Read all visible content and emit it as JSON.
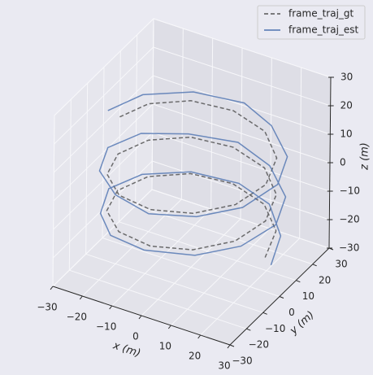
{
  "chart_data": {
    "type": "line3d",
    "xlabel": "x (m)",
    "ylabel": "y (m)",
    "zlabel": "z (m)",
    "xlim": [
      -30,
      30
    ],
    "ylim": [
      -30,
      30
    ],
    "zlim": [
      -30,
      30
    ],
    "xticks": [
      {
        "value": -30,
        "label": "−30"
      },
      {
        "value": -20,
        "label": "−20"
      },
      {
        "value": -10,
        "label": "−10"
      },
      0,
      10,
      20,
      30
    ],
    "yticks": [
      {
        "value": -30,
        "label": "−30"
      },
      {
        "value": -20,
        "label": "−20"
      },
      {
        "value": -10,
        "label": "−10"
      },
      0,
      10,
      20,
      30
    ],
    "zticks": [
      {
        "value": -30,
        "label": "−30"
      },
      {
        "value": -20,
        "label": "−20"
      },
      {
        "value": -10,
        "label": "−10"
      },
      0,
      10,
      20,
      30
    ],
    "grid": true,
    "legend": "upper right",
    "series": [
      {
        "name": "frame_traj_gt",
        "color": "#555555",
        "dashed": true,
        "x": [
          25,
          21.7,
          12.5,
          0,
          -12.5,
          -21.7,
          -25,
          -21.7,
          -12.5,
          0,
          12.5,
          21.7,
          25,
          21.7,
          12.5,
          0,
          -12.5,
          -21.7,
          -25,
          -21.7,
          -12.5,
          0,
          12.5,
          21.7,
          25,
          21.7,
          12.5,
          0,
          -12.5,
          -21.7,
          -25
        ],
        "y": [
          0,
          12.5,
          21.7,
          25,
          21.7,
          12.5,
          0,
          -12.5,
          -21.7,
          -25,
          -21.7,
          -12.5,
          0,
          12.5,
          21.7,
          25,
          21.7,
          12.5,
          0,
          -12.5,
          -21.7,
          -25,
          -21.7,
          -12.5,
          0,
          12.5,
          21.7,
          25,
          21.7,
          12.5,
          0
        ],
        "z": [
          -18,
          -16.9,
          -15.9,
          -14.8,
          -13.7,
          -12.7,
          -11.6,
          -10.5,
          -9.5,
          -8.4,
          -7.3,
          -6.3,
          -5.2,
          -4.1,
          -3.1,
          -2,
          -0.9,
          0.1,
          1.2,
          2.3,
          3.3,
          4.4,
          5.5,
          6.5,
          7.6,
          8.7,
          9.7,
          10.8,
          11.9,
          12.9,
          14
        ]
      },
      {
        "name": "frame_traj_est",
        "color": "#4c72b0",
        "dashed": false,
        "x": [
          27,
          23,
          13,
          1,
          -13,
          -24,
          -28,
          -23,
          -14,
          -1,
          14,
          24,
          28,
          24,
          13,
          0,
          -14,
          -25,
          -29,
          -24,
          -13,
          1,
          15,
          25,
          29,
          25,
          14,
          2,
          -13,
          -24,
          -28
        ],
        "y": [
          0,
          13,
          24,
          27,
          23,
          13,
          0,
          -14,
          -24,
          -27,
          -23,
          -13,
          1,
          14,
          24,
          28,
          23,
          14,
          1,
          -13,
          -23,
          -28,
          -24,
          -14,
          0,
          13,
          23,
          28,
          24,
          13,
          -1
        ],
        "z": [
          -20,
          -18.5,
          -17,
          -15.5,
          -14,
          -13,
          -12,
          -11,
          -10,
          -9,
          -8,
          -7,
          -6,
          -5,
          -3.5,
          -2,
          -1,
          0.5,
          1.5,
          3,
          4,
          5,
          6.5,
          7.5,
          9,
          10,
          11.5,
          12.5,
          13.5,
          15,
          16
        ]
      }
    ]
  }
}
